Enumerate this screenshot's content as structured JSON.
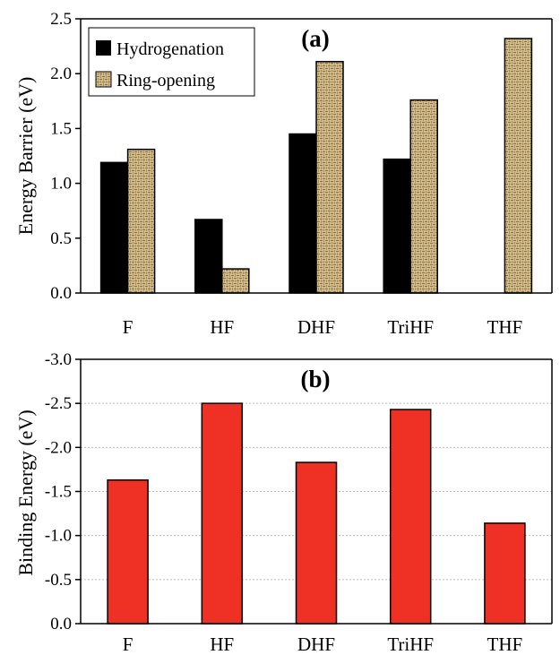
{
  "chart_data": [
    {
      "type": "bar",
      "panel_label": "(a)",
      "ylabel": "Energy Barrier (eV)",
      "categories": [
        "F",
        "HF",
        "DHF",
        "TriHF",
        "THF"
      ],
      "ylim": [
        0,
        2.5
      ],
      "yticks": [
        "0.0",
        "0.5",
        "1.0",
        "1.5",
        "2.0",
        "2.5"
      ],
      "grid": false,
      "legend_position": "top-left",
      "series": [
        {
          "name": "Hydrogenation",
          "color": "#000000",
          "pattern": "solid",
          "values": [
            1.19,
            0.67,
            1.45,
            1.22,
            null
          ]
        },
        {
          "name": "Ring-opening",
          "color": "#d9c79a",
          "pattern": "woven",
          "values": [
            1.31,
            0.22,
            2.11,
            1.76,
            2.32
          ]
        }
      ]
    },
    {
      "type": "bar",
      "panel_label": "(b)",
      "ylabel": "Binding Energy (eV)",
      "categories": [
        "F",
        "HF",
        "DHF",
        "TriHF",
        "THF"
      ],
      "ylim": [
        0,
        -3.0
      ],
      "yticks": [
        "0.0",
        "-0.5",
        "-1.0",
        "-1.5",
        "-2.0",
        "-2.5",
        "-3.0"
      ],
      "grid": true,
      "series": [
        {
          "color": "#ee3124",
          "values": [
            -1.63,
            -2.5,
            -1.83,
            -2.43,
            -1.14
          ]
        }
      ]
    }
  ]
}
